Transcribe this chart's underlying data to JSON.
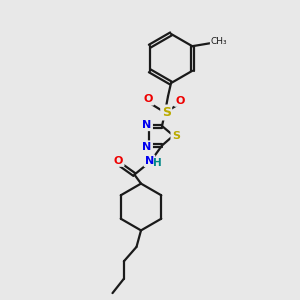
{
  "background_color": "#e8e8e8",
  "bond_color": "#1a1a1a",
  "N_color": "#0000ee",
  "S_color": "#bbaa00",
  "O_color": "#ee0000",
  "NH_color": "#008888",
  "figsize": [
    3.0,
    3.0
  ],
  "dpi": 100,
  "xlim": [
    0,
    10
  ],
  "ylim": [
    0,
    10
  ]
}
